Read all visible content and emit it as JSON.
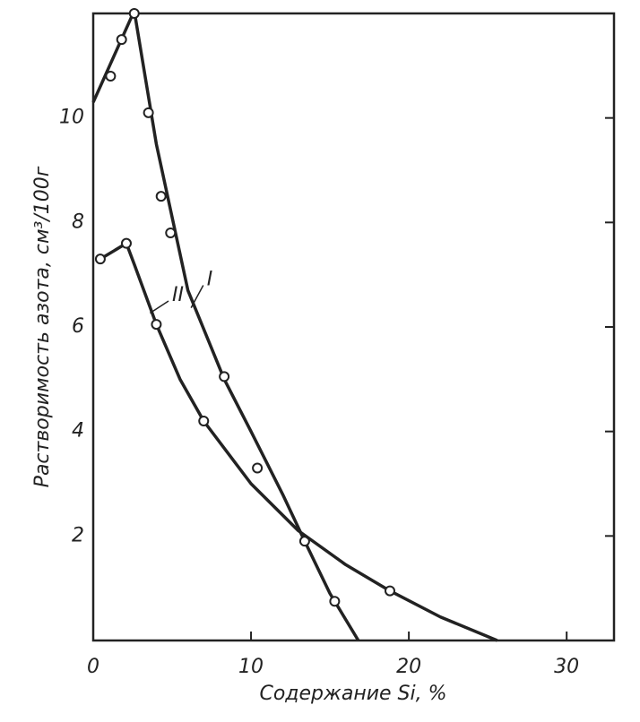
{
  "chart_data": {
    "type": "line",
    "xlabel": "Содержание Si, %",
    "ylabel": "Растворимость азота, см³/100г",
    "xlim": [
      0,
      33
    ],
    "ylim": [
      0,
      12
    ],
    "xticks": [
      0,
      10,
      20,
      30
    ],
    "yticks": [
      2,
      4,
      6,
      8,
      10
    ],
    "grid": false,
    "color": "#222",
    "series": [
      {
        "name": "I",
        "x": [
          0,
          2.6,
          4,
          6,
          8.3,
          10,
          12,
          13.4,
          15,
          16.8
        ],
        "values": [
          10.3,
          12.05,
          9.5,
          6.7,
          5.0,
          4.0,
          2.8,
          1.9,
          0.9,
          0
        ],
        "markers": {
          "x": [
            1.1,
            1.8,
            2.6,
            3.5,
            4.3,
            4.9,
            8.3,
            10.4,
            13.4,
            15.3
          ],
          "values": [
            10.8,
            11.5,
            12,
            10.1,
            8.5,
            7.8,
            5.05,
            3.3,
            1.9,
            0.75
          ]
        }
      },
      {
        "name": "II",
        "x": [
          0.45,
          2.1,
          2.6,
          4,
          5.5,
          7,
          10,
          13,
          16,
          18.8,
          22,
          25.6
        ],
        "values": [
          7.3,
          7.6,
          7.2,
          6.05,
          5.0,
          4.2,
          3.0,
          2.1,
          1.45,
          0.95,
          0.45,
          0
        ],
        "markers": {
          "x": [
            0.45,
            2.1,
            4.0,
            7.0,
            18.8
          ],
          "values": [
            7.3,
            7.6,
            6.05,
            4.2,
            0.95
          ]
        }
      }
    ]
  }
}
